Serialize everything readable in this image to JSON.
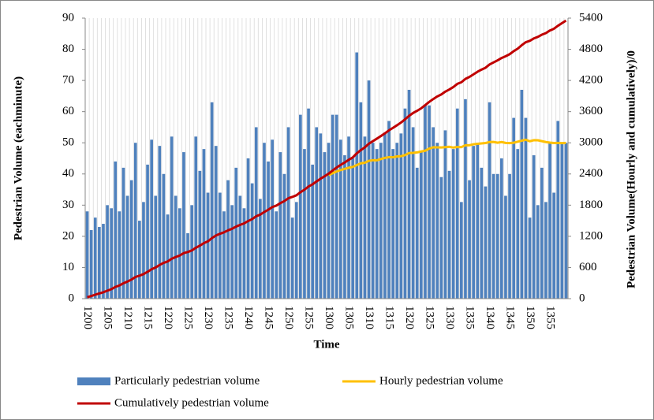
{
  "chart_data": {
    "type": "bar",
    "xlabel": "Time",
    "ylabel": "Pedestrian Volume (eachminute)",
    "y2label": "Pedestrian Volume(Hourly and cumulatively)/0",
    "categories": [
      "1200",
      null,
      null,
      null,
      null,
      "1205",
      null,
      null,
      null,
      null,
      "1210",
      null,
      null,
      null,
      null,
      "1215",
      null,
      null,
      null,
      null,
      "1220",
      null,
      null,
      null,
      null,
      "1225",
      null,
      null,
      null,
      null,
      "1230",
      null,
      null,
      null,
      null,
      "1235",
      null,
      null,
      null,
      null,
      "1240",
      null,
      null,
      null,
      null,
      "1245",
      null,
      null,
      null,
      null,
      "1250",
      null,
      null,
      null,
      null,
      "1255",
      null,
      null,
      null,
      null,
      "1300",
      null,
      null,
      null,
      null,
      "1305",
      null,
      null,
      null,
      null,
      "1310",
      null,
      null,
      null,
      null,
      "1315",
      null,
      null,
      null,
      null,
      "1320",
      null,
      null,
      null,
      null,
      "1325",
      null,
      null,
      null,
      null,
      "1330",
      null,
      null,
      null,
      null,
      "1335",
      null,
      null,
      null,
      null,
      "1340",
      null,
      null,
      null,
      null,
      "1345",
      null,
      null,
      null,
      null,
      "1350",
      null,
      null,
      null,
      null,
      "1355",
      null,
      null,
      null,
      null
    ],
    "series": [
      {
        "name": "Particularly pedestrian volume",
        "type": "bar",
        "color": "#4f81bd",
        "values": [
          28,
          22,
          26,
          23,
          24,
          30,
          29,
          44,
          28,
          42,
          33,
          38,
          50,
          25,
          31,
          43,
          51,
          33,
          49,
          40,
          27,
          52,
          33,
          29,
          47,
          21,
          30,
          52,
          41,
          48,
          34,
          63,
          49,
          34,
          28,
          38,
          30,
          42,
          33,
          29,
          45,
          37,
          55,
          32,
          50,
          44,
          51,
          28,
          47,
          40,
          55,
          26,
          31,
          59,
          48,
          61,
          43,
          55,
          53,
          47,
          50,
          59,
          59,
          51,
          46,
          52,
          45,
          79,
          63,
          52,
          70,
          50,
          48,
          50,
          53,
          57,
          48,
          50,
          53,
          61,
          67,
          55,
          42,
          47,
          62,
          62,
          55,
          50,
          39,
          54,
          41,
          48,
          61,
          31,
          64,
          38,
          49,
          50,
          42,
          36,
          63,
          40,
          40,
          45,
          33,
          40,
          58,
          48,
          67,
          58,
          26,
          46,
          30,
          42,
          31,
          50,
          34,
          57,
          50,
          50
        ]
      },
      {
        "name": "Hourly pedestrian volume",
        "type": "line",
        "axis": "y2",
        "color": "#ffc000",
        "values": [
          null,
          null,
          null,
          null,
          null,
          null,
          null,
          null,
          null,
          null,
          null,
          null,
          null,
          null,
          null,
          null,
          null,
          null,
          null,
          null,
          null,
          null,
          null,
          null,
          null,
          null,
          null,
          null,
          null,
          null,
          null,
          null,
          null,
          null,
          null,
          null,
          null,
          null,
          null,
          null,
          null,
          null,
          null,
          null,
          null,
          null,
          null,
          null,
          null,
          null,
          null,
          null,
          null,
          null,
          null,
          null,
          null,
          null,
          null,
          null,
          2378,
          2415,
          2448,
          2476,
          2498,
          2520,
          2536,
          2571,
          2606,
          2616,
          2653,
          2665,
          2663,
          2688,
          2710,
          2724,
          2721,
          2738,
          2742,
          2763,
          2803,
          2806,
          2815,
          2833,
          2848,
          2889,
          2914,
          2912,
          2910,
          2916,
          2923,
          2908,
          2920,
          2917,
          2953,
          2953,
          2972,
          2980,
          2989,
          2996,
          3014,
          3017,
          3002,
          3015,
          2998,
          2994,
          3001,
          3021,
          3041,
          3059,
          3030,
          3050,
          3049,
          3032,
          3015,
          3004,
          2995,
          2997,
          2994,
          2997
        ]
      },
      {
        "name": "Cumulatively pedestrian volume",
        "type": "line",
        "axis": "y2",
        "color": "#c00000",
        "values": [
          28,
          50,
          76,
          99,
          123,
          153,
          182,
          226,
          254,
          296,
          329,
          367,
          417,
          442,
          473,
          516,
          567,
          600,
          649,
          689,
          716,
          768,
          801,
          830,
          877,
          898,
          928,
          980,
          1021,
          1069,
          1103,
          1166,
          1215,
          1249,
          1277,
          1315,
          1345,
          1387,
          1420,
          1449,
          1494,
          1531,
          1586,
          1618,
          1668,
          1712,
          1763,
          1791,
          1838,
          1878,
          1933,
          1959,
          1990,
          2049,
          2097,
          2158,
          2201,
          2256,
          2309,
          2356,
          2406,
          2465,
          2524,
          2575,
          2621,
          2673,
          2718,
          2797,
          2860,
          2912,
          2982,
          3032,
          3080,
          3130,
          3183,
          3240,
          3288,
          3338,
          3391,
          3452,
          3519,
          3574,
          3616,
          3663,
          3725,
          3787,
          3842,
          3892,
          3931,
          3985,
          4026,
          4074,
          4135,
          4166,
          4230,
          4268,
          4317,
          4367,
          4409,
          4445,
          4508,
          4548,
          4588,
          4633,
          4666,
          4706,
          4764,
          4812,
          4879,
          4937,
          4963,
          5009,
          5039,
          5081,
          5112,
          5162,
          5196,
          5253,
          5303,
          5353
        ]
      }
    ],
    "ylim": [
      0,
      90
    ],
    "yticks": [
      0,
      10,
      20,
      30,
      40,
      50,
      60,
      70,
      80,
      90
    ],
    "y2lim": [
      0,
      5400
    ],
    "y2ticks": [
      0,
      600,
      1200,
      1800,
      2400,
      3000,
      3600,
      4200,
      4800,
      5400
    ],
    "grid": true
  }
}
